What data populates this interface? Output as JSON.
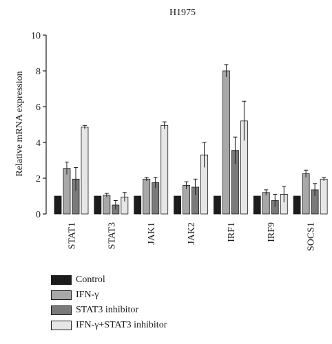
{
  "chart_data": {
    "type": "bar",
    "title": "H1975",
    "xlabel": "",
    "ylabel": "Relative mRNA expression",
    "ylim": [
      0,
      10
    ],
    "yticks": [
      0,
      2,
      4,
      6,
      8,
      10
    ],
    "categories": [
      "STAT1",
      "STAT3",
      "JAK1",
      "JAK2",
      "IRF1",
      "IRF9",
      "SOCS1"
    ],
    "series": [
      {
        "name": "Control",
        "color": "#1c1c1c",
        "values": [
          1.0,
          1.0,
          1.0,
          1.0,
          1.0,
          1.0,
          1.0
        ],
        "errors": [
          0,
          0,
          0,
          0,
          0,
          0,
          0
        ]
      },
      {
        "name": "IFN-γ",
        "color": "#a8a8a8",
        "values": [
          2.55,
          1.05,
          1.95,
          1.6,
          8.0,
          1.2,
          2.25
        ],
        "errors": [
          0.35,
          0.1,
          0.1,
          0.2,
          0.35,
          0.15,
          0.2
        ]
      },
      {
        "name": "STAT3 inhibitor",
        "color": "#7a7a7a",
        "values": [
          1.95,
          0.5,
          1.75,
          1.5,
          3.55,
          0.75,
          1.35
        ],
        "errors": [
          0.65,
          0.25,
          0.3,
          0.45,
          0.75,
          0.35,
          0.35
        ]
      },
      {
        "name": "IFN-γ+STAT3 inhibitor",
        "color": "#e6e6e6",
        "values": [
          4.85,
          0.95,
          4.95,
          3.3,
          5.2,
          1.1,
          1.95
        ],
        "errors": [
          0.1,
          0.25,
          0.2,
          0.7,
          1.1,
          0.45,
          0.1
        ]
      }
    ],
    "legend_position": "bottom-left",
    "grid": false
  }
}
